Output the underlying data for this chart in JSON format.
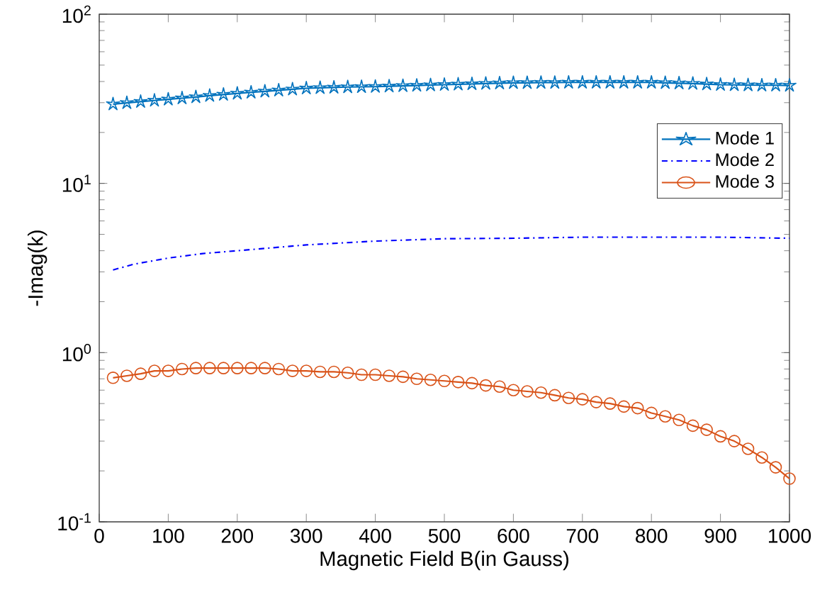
{
  "chart_data": {
    "type": "line",
    "xlabel": "Magnetic Field B(in Gauss)",
    "ylabel": "-Imag(k)",
    "log": "y",
    "grid": false,
    "legend": "top right",
    "xlim": [
      0,
      1000
    ],
    "ylim": [
      0.1,
      100
    ],
    "xticks": [
      0,
      100,
      200,
      300,
      400,
      500,
      600,
      700,
      800,
      900,
      1000
    ],
    "yticks": [
      {
        "value": 0.1,
        "label": "10$^{-1}$"
      },
      {
        "value": 1,
        "label": "10$^{0}$"
      },
      {
        "value": 10,
        "label": "10$^{1}$"
      },
      {
        "value": 100,
        "label": "10$^{2}$"
      }
    ],
    "series": [
      {
        "name": "Mode 1",
        "color": "#0072bd",
        "marker": "star",
        "line_style": "solid",
        "x": [
          20,
          40,
          60,
          80,
          100,
          120,
          140,
          160,
          180,
          200,
          220,
          240,
          260,
          280,
          300,
          320,
          340,
          360,
          380,
          400,
          420,
          440,
          460,
          480,
          500,
          520,
          540,
          560,
          580,
          600,
          620,
          640,
          660,
          680,
          700,
          720,
          740,
          760,
          780,
          800,
          820,
          840,
          860,
          880,
          900,
          920,
          940,
          960,
          980,
          1000
        ],
        "values": [
          29.4,
          29.9,
          30.4,
          30.9,
          31.4,
          31.9,
          32.4,
          33.0,
          33.5,
          34.0,
          34.5,
          35.0,
          35.5,
          36.0,
          36.5,
          36.7,
          36.9,
          37.1,
          37.2,
          37.3,
          37.5,
          37.7,
          37.9,
          38.1,
          38.3,
          38.5,
          38.7,
          38.9,
          39.1,
          39.3,
          39.3,
          39.4,
          39.4,
          39.5,
          39.5,
          39.5,
          39.5,
          39.5,
          39.5,
          39.5,
          39.3,
          39.1,
          38.9,
          38.6,
          38.3,
          38.2,
          38.1,
          38.0,
          38.0,
          37.9
        ]
      },
      {
        "name": "Mode 2",
        "color": "#0000ff",
        "marker": "none",
        "line_style": "dashdot",
        "x": [
          20,
          50,
          100,
          150,
          200,
          300,
          400,
          500,
          600,
          700,
          800,
          900,
          1000
        ],
        "values": [
          3.08,
          3.33,
          3.62,
          3.85,
          4.0,
          4.33,
          4.56,
          4.71,
          4.74,
          4.81,
          4.81,
          4.81,
          4.74
        ]
      },
      {
        "name": "Mode 3",
        "color": "#d95319",
        "marker": "circle",
        "line_style": "solid",
        "x": [
          20,
          40,
          60,
          80,
          100,
          120,
          140,
          160,
          180,
          200,
          220,
          240,
          260,
          280,
          300,
          320,
          340,
          360,
          380,
          400,
          420,
          440,
          460,
          480,
          500,
          520,
          540,
          560,
          580,
          600,
          620,
          640,
          660,
          680,
          700,
          720,
          740,
          760,
          780,
          800,
          820,
          840,
          860,
          880,
          900,
          920,
          940,
          960,
          980,
          1000
        ],
        "values": [
          0.71,
          0.73,
          0.75,
          0.78,
          0.78,
          0.8,
          0.81,
          0.81,
          0.81,
          0.81,
          0.81,
          0.81,
          0.8,
          0.78,
          0.78,
          0.77,
          0.77,
          0.76,
          0.74,
          0.74,
          0.73,
          0.72,
          0.7,
          0.69,
          0.68,
          0.67,
          0.66,
          0.64,
          0.63,
          0.6,
          0.59,
          0.58,
          0.56,
          0.54,
          0.53,
          0.51,
          0.5,
          0.48,
          0.47,
          0.44,
          0.42,
          0.4,
          0.37,
          0.35,
          0.32,
          0.3,
          0.27,
          0.24,
          0.21,
          0.18
        ]
      }
    ]
  }
}
